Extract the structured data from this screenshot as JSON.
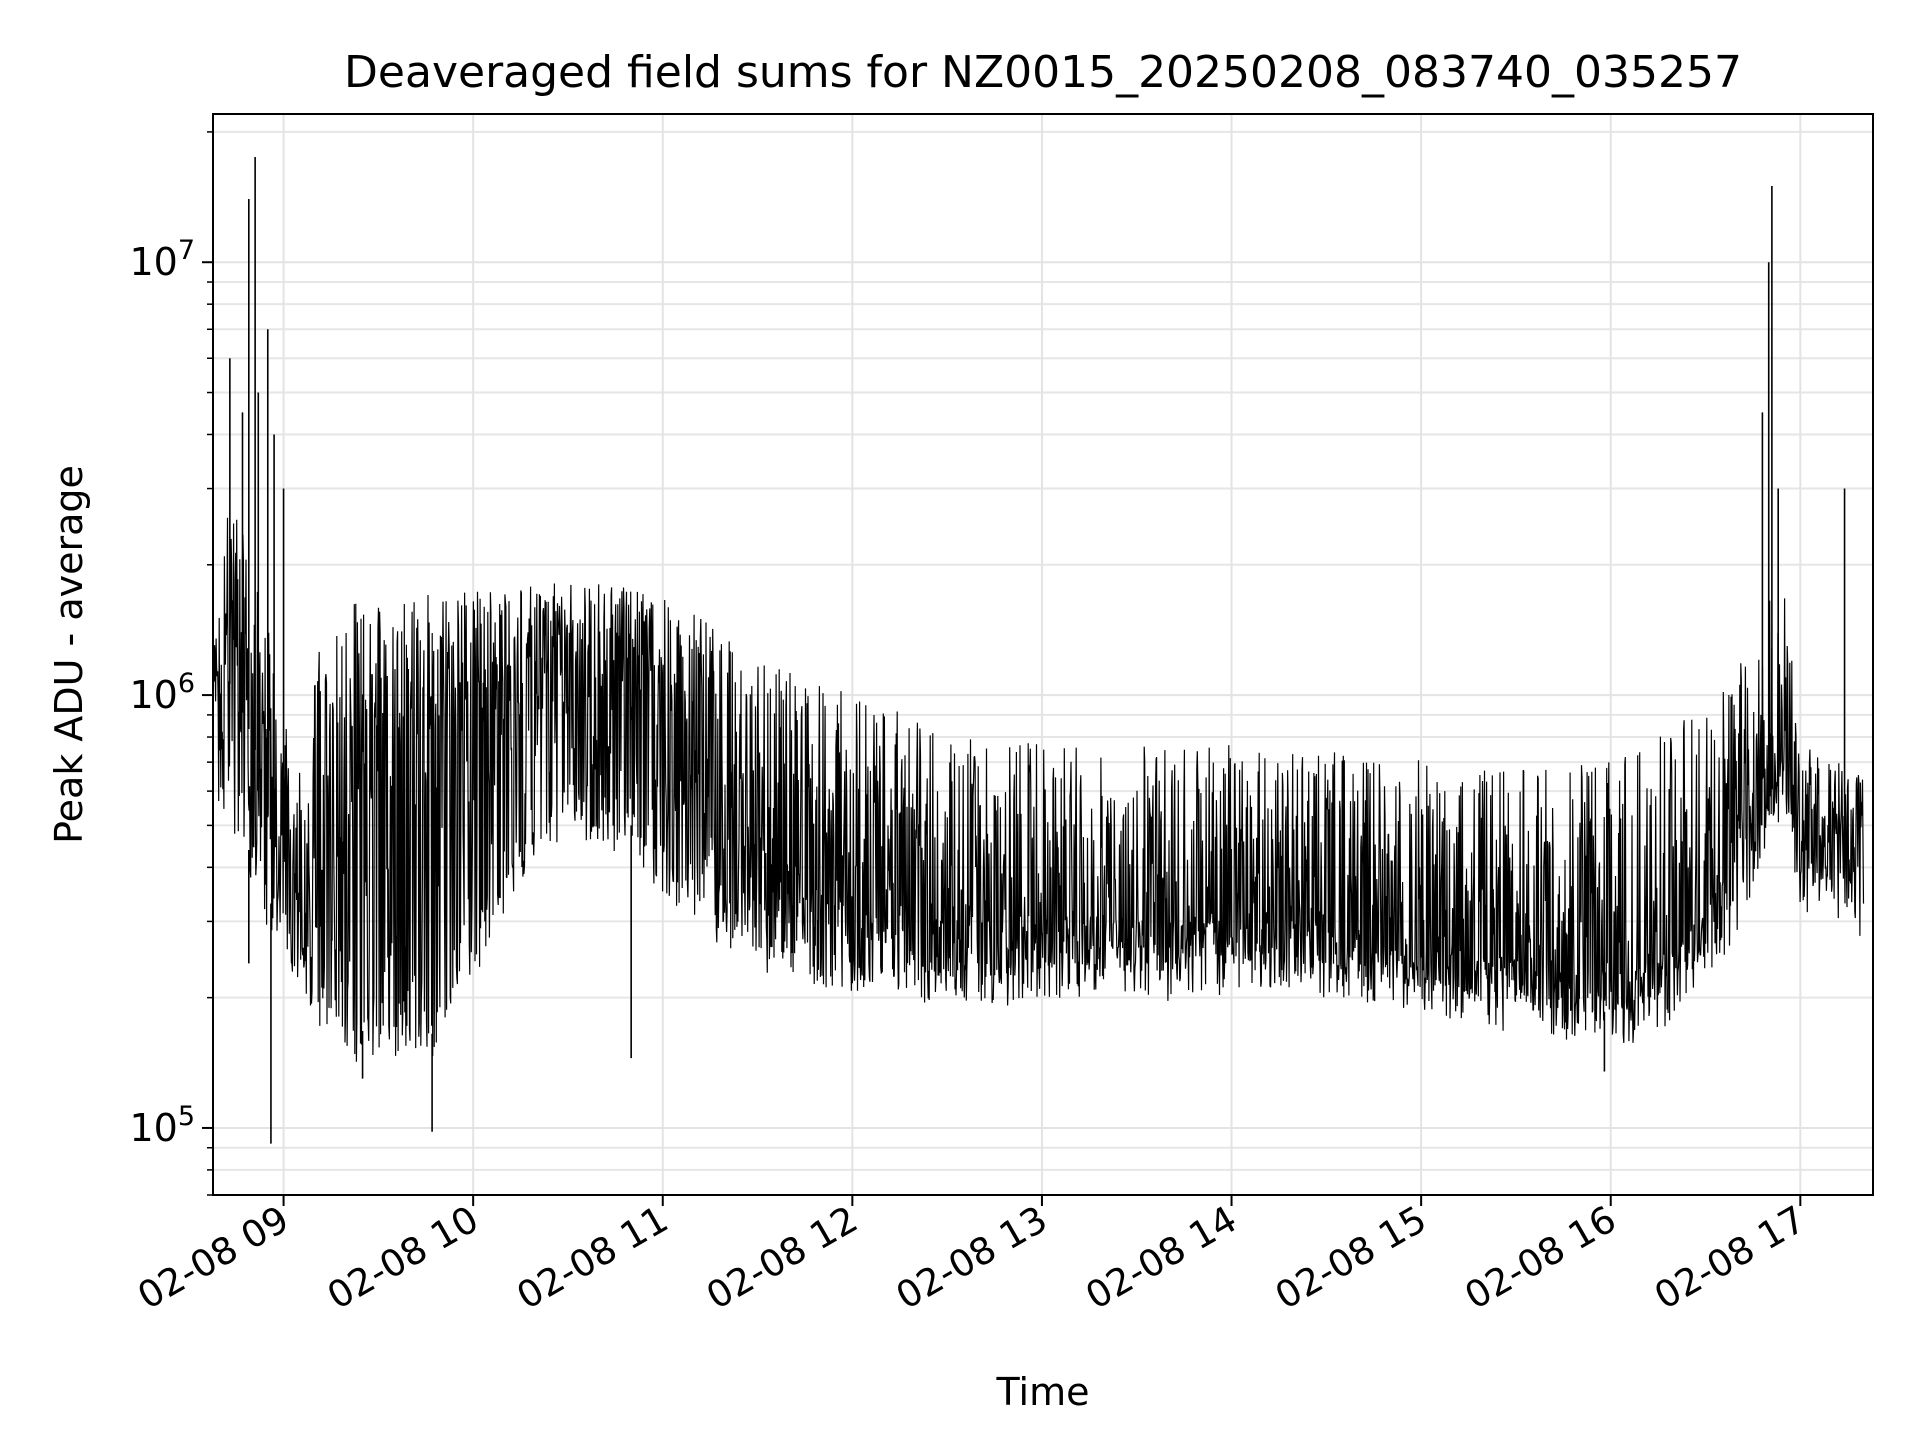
{
  "chart_data": {
    "type": "line",
    "title": "Deaveraged field sums for NZ0015_20250208_083740_035257",
    "xlabel": "Time",
    "ylabel": "Peak ADU - average",
    "x_scale": "time",
    "y_scale": "log",
    "grid": true,
    "grid_minor": true,
    "legend": "none",
    "xlim": [
      "2025-02-08 08:37:40",
      "2025-02-08 17:23:00"
    ],
    "ylim": [
      70000,
      22000000
    ],
    "x_ticks": [
      {
        "value": "2025-02-08 09:00",
        "label": "02-08 09"
      },
      {
        "value": "2025-02-08 10:00",
        "label": "02-08 10"
      },
      {
        "value": "2025-02-08 11:00",
        "label": "02-08 11"
      },
      {
        "value": "2025-02-08 12:00",
        "label": "02-08 12"
      },
      {
        "value": "2025-02-08 13:00",
        "label": "02-08 13"
      },
      {
        "value": "2025-02-08 14:00",
        "label": "02-08 14"
      },
      {
        "value": "2025-02-08 15:00",
        "label": "02-08 15"
      },
      {
        "value": "2025-02-08 16:00",
        "label": "02-08 16"
      },
      {
        "value": "2025-02-08 17:00",
        "label": "02-08 17"
      }
    ],
    "y_ticks": [
      {
        "value": 100000,
        "base": "10",
        "exp": "5"
      },
      {
        "value": 1000000,
        "base": "10",
        "exp": "6"
      },
      {
        "value": 10000000,
        "base": "10",
        "exp": "7"
      }
    ],
    "series": [
      {
        "color": "#000000",
        "x": [
          "2025-02-08 08:38",
          "2025-02-08 08:42",
          "2025-02-08 08:46",
          "2025-02-08 08:50",
          "2025-02-08 08:53",
          "2025-02-08 08:56",
          "2025-02-08 09:00",
          "2025-02-08 09:05",
          "2025-02-08 09:12",
          "2025-02-08 09:20",
          "2025-02-08 09:30",
          "2025-02-08 09:40",
          "2025-02-08 09:47",
          "2025-02-08 09:55",
          "2025-02-08 10:05",
          "2025-02-08 10:20",
          "2025-02-08 10:35",
          "2025-02-08 10:50",
          "2025-02-08 11:00",
          "2025-02-08 11:10",
          "2025-02-08 11:20",
          "2025-02-08 11:35",
          "2025-02-08 11:50",
          "2025-02-08 12:05",
          "2025-02-08 12:20",
          "2025-02-08 12:40",
          "2025-02-08 13:00",
          "2025-02-08 13:20",
          "2025-02-08 13:40",
          "2025-02-08 14:00",
          "2025-02-08 14:20",
          "2025-02-08 14:40",
          "2025-02-08 15:00",
          "2025-02-08 15:20",
          "2025-02-08 15:40",
          "2025-02-08 16:00",
          "2025-02-08 16:10",
          "2025-02-08 16:20",
          "2025-02-08 16:30",
          "2025-02-08 16:40",
          "2025-02-08 16:45",
          "2025-02-08 16:50",
          "2025-02-08 16:55",
          "2025-02-08 17:00",
          "2025-02-08 17:10",
          "2025-02-08 17:20"
        ],
        "y_low": [
          700000,
          600000,
          500000,
          420000,
          380000,
          330000,
          300000,
          240000,
          200000,
          170000,
          165000,
          165000,
          165000,
          230000,
          300000,
          500000,
          550000,
          500000,
          400000,
          330000,
          300000,
          270000,
          250000,
          230000,
          220000,
          220000,
          230000,
          235000,
          230000,
          240000,
          235000,
          230000,
          210000,
          200000,
          190000,
          185000,
          185000,
          210000,
          250000,
          320000,
          400000,
          500000,
          600000,
          380000,
          340000,
          330000
        ],
        "y_mid": [
          1000000,
          1100000,
          950000,
          800000,
          650000,
          500000,
          420000,
          330000,
          450000,
          600000,
          700000,
          800000,
          800000,
          900000,
          1000000,
          1200000,
          1300000,
          1200000,
          900000,
          700000,
          500000,
          430000,
          380000,
          340000,
          320000,
          310000,
          310000,
          310000,
          300000,
          310000,
          300000,
          290000,
          260000,
          250000,
          240000,
          230000,
          235000,
          260000,
          320000,
          450000,
          560000,
          700000,
          800000,
          530000,
          480000,
          470000
        ],
        "y_high": [
          1300000,
          3000000,
          2800000,
          2200000,
          1800000,
          1500000,
          1000000,
          800000,
          1700000,
          1800000,
          1900000,
          1900000,
          1900000,
          1900000,
          1900000,
          1900000,
          1900000,
          1900000,
          1800000,
          1700000,
          1500000,
          1300000,
          1200000,
          1100000,
          1000000,
          900000,
          850000,
          850000,
          850000,
          900000,
          850000,
          800000,
          800000,
          750000,
          800000,
          800000,
          900000,
          1000000,
          1100000,
          1300000,
          1500000,
          2000000,
          2200000,
          800000,
          750000,
          700000
        ],
        "spikes": [
          {
            "x": "2025-02-08 08:43",
            "y": 6000000
          },
          {
            "x": "2025-02-08 08:47",
            "y": 4500000
          },
          {
            "x": "2025-02-08 08:49",
            "y": 14000000
          },
          {
            "x": "2025-02-08 08:51",
            "y": 17500000
          },
          {
            "x": "2025-02-08 08:52",
            "y": 5000000
          },
          {
            "x": "2025-02-08 08:55",
            "y": 7000000
          },
          {
            "x": "2025-02-08 08:57",
            "y": 4000000
          },
          {
            "x": "2025-02-08 09:00",
            "y": 3000000
          },
          {
            "x": "2025-02-08 16:48",
            "y": 4500000
          },
          {
            "x": "2025-02-08 16:50",
            "y": 10000000
          },
          {
            "x": "2025-02-08 16:51",
            "y": 15000000
          },
          {
            "x": "2025-02-08 16:53",
            "y": 3000000
          },
          {
            "x": "2025-02-08 17:14",
            "y": 3000000
          }
        ],
        "dips": [
          {
            "x": "2025-02-08 08:56",
            "y": 92000
          },
          {
            "x": "2025-02-08 09:47",
            "y": 98000
          },
          {
            "x": "2025-02-08 08:49",
            "y": 240000
          },
          {
            "x": "2025-02-08 09:25",
            "y": 130000
          },
          {
            "x": "2025-02-08 15:58",
            "y": 135000
          },
          {
            "x": "2025-02-08 10:50",
            "y": 145000
          }
        ]
      }
    ]
  }
}
